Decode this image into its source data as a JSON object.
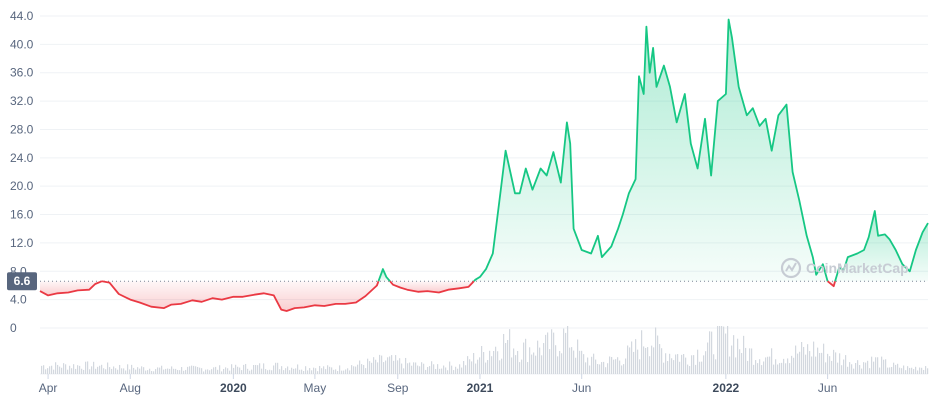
{
  "chart_data": {
    "type": "area",
    "title": "",
    "xlabel": "",
    "ylabel": "",
    "ylim": [
      0,
      44
    ],
    "yticks": [
      "44.0",
      "40.0",
      "36.0",
      "32.0",
      "28.0",
      "24.0",
      "20.0",
      "16.0",
      "12.0",
      "8.0",
      "4.0",
      "0"
    ],
    "ytick_values": [
      44,
      40,
      36,
      32,
      28,
      24,
      20,
      16,
      12,
      8,
      4,
      0
    ],
    "xlim": [
      "2019-03-20",
      "2022-10-28"
    ],
    "xticks": [
      {
        "label": "Apr",
        "date": "2019-04-01",
        "bold": false
      },
      {
        "label": "Aug",
        "date": "2019-08-01",
        "bold": false
      },
      {
        "label": "2020",
        "date": "2020-01-01",
        "bold": true
      },
      {
        "label": "May",
        "date": "2020-05-01",
        "bold": false
      },
      {
        "label": "Sep",
        "date": "2020-09-01",
        "bold": false
      },
      {
        "label": "2021",
        "date": "2021-01-01",
        "bold": true
      },
      {
        "label": "Jun",
        "date": "2021-06-01",
        "bold": false
      },
      {
        "label": "2022",
        "date": "2022-01-01",
        "bold": true
      },
      {
        "label": "Jun",
        "date": "2022-06-01",
        "bold": false
      }
    ],
    "baseline": {
      "value": 6.6,
      "label": "6.6"
    },
    "colors": {
      "above": "#16c784",
      "below": "#ea3943",
      "badge": "#58667e",
      "volume": "#d3d8df"
    },
    "grid": "horizontal",
    "watermark": "CoinMarketCap",
    "series": [
      {
        "name": "",
        "x": [
          "2019-03-20",
          "2019-04-01",
          "2019-04-15",
          "2019-05-01",
          "2019-05-15",
          "2019-06-01",
          "2019-06-10",
          "2019-06-20",
          "2019-07-01",
          "2019-07-15",
          "2019-08-01",
          "2019-08-15",
          "2019-09-01",
          "2019-09-20",
          "2019-10-01",
          "2019-10-15",
          "2019-11-01",
          "2019-11-15",
          "2019-12-01",
          "2019-12-15",
          "2020-01-01",
          "2020-01-15",
          "2020-02-01",
          "2020-02-15",
          "2020-03-01",
          "2020-03-12",
          "2020-03-20",
          "2020-04-01",
          "2020-04-15",
          "2020-05-01",
          "2020-05-15",
          "2020-06-01",
          "2020-06-15",
          "2020-07-01",
          "2020-07-15",
          "2020-08-01",
          "2020-08-10",
          "2020-08-15",
          "2020-08-25",
          "2020-09-05",
          "2020-09-15",
          "2020-10-01",
          "2020-10-15",
          "2020-11-01",
          "2020-11-15",
          "2020-12-01",
          "2020-12-15",
          "2020-12-25",
          "2021-01-01",
          "2021-01-10",
          "2021-01-20",
          "2021-02-01",
          "2021-02-08",
          "2021-02-15",
          "2021-02-22",
          "2021-03-01",
          "2021-03-10",
          "2021-03-20",
          "2021-04-01",
          "2021-04-10",
          "2021-04-20",
          "2021-05-01",
          "2021-05-10",
          "2021-05-15",
          "2021-05-20",
          "2021-06-01",
          "2021-06-15",
          "2021-06-25",
          "2021-07-01",
          "2021-07-15",
          "2021-07-25",
          "2021-08-01",
          "2021-08-10",
          "2021-08-20",
          "2021-08-25",
          "2021-09-01",
          "2021-09-05",
          "2021-09-10",
          "2021-09-15",
          "2021-09-20",
          "2021-10-01",
          "2021-10-10",
          "2021-10-20",
          "2021-11-01",
          "2021-11-10",
          "2021-11-20",
          "2021-12-01",
          "2021-12-10",
          "2021-12-20",
          "2022-01-01",
          "2022-01-05",
          "2022-01-10",
          "2022-01-20",
          "2022-02-01",
          "2022-02-10",
          "2022-02-20",
          "2022-03-01",
          "2022-03-10",
          "2022-03-20",
          "2022-04-01",
          "2022-04-10",
          "2022-04-20",
          "2022-05-01",
          "2022-05-10",
          "2022-05-15",
          "2022-05-25",
          "2022-06-01",
          "2022-06-10",
          "2022-06-18",
          "2022-06-25",
          "2022-07-01",
          "2022-07-15",
          "2022-07-25",
          "2022-08-01",
          "2022-08-10",
          "2022-08-15",
          "2022-08-25",
          "2022-09-01",
          "2022-09-10",
          "2022-09-20",
          "2022-10-01",
          "2022-10-10",
          "2022-10-20",
          "2022-10-28"
        ],
        "y": [
          5.2,
          4.6,
          4.9,
          5.0,
          5.3,
          5.4,
          6.2,
          6.6,
          6.4,
          4.8,
          4.0,
          3.6,
          3.0,
          2.8,
          3.3,
          3.4,
          3.9,
          3.7,
          4.2,
          4.0,
          4.4,
          4.4,
          4.7,
          4.9,
          4.6,
          2.6,
          2.4,
          2.8,
          2.9,
          3.2,
          3.1,
          3.4,
          3.4,
          3.6,
          4.5,
          6.0,
          8.3,
          7.2,
          6.1,
          5.7,
          5.4,
          5.1,
          5.2,
          5.0,
          5.4,
          5.6,
          5.8,
          6.8,
          7.2,
          8.3,
          10.5,
          19.5,
          25.0,
          22.0,
          19.0,
          19.0,
          22.5,
          19.5,
          22.5,
          21.5,
          24.8,
          20.5,
          29.0,
          26.0,
          14.0,
          11.0,
          10.5,
          13.0,
          10.0,
          11.5,
          14.0,
          16.0,
          19.0,
          21.0,
          35.5,
          33.0,
          42.5,
          36.0,
          39.5,
          34.0,
          37.0,
          34.0,
          29.0,
          33.0,
          26.0,
          22.5,
          29.5,
          21.5,
          32.0,
          33.0,
          43.5,
          41.0,
          34.0,
          30.0,
          31.0,
          28.5,
          29.5,
          25.0,
          30.0,
          31.5,
          22.0,
          18.0,
          13.0,
          10.0,
          7.5,
          9.0,
          6.6,
          5.9,
          8.5,
          8.2,
          10.0,
          10.5,
          11.0,
          12.8,
          16.5,
          13.0,
          13.2,
          12.5,
          11.0,
          9.0,
          8.0,
          11.0,
          13.5,
          14.8
        ]
      }
    ],
    "volume": {
      "x": [
        "2019-03-20",
        "2019-06-01",
        "2019-09-01",
        "2019-12-01",
        "2020-03-01",
        "2020-06-01",
        "2020-08-15",
        "2020-10-01",
        "2020-12-01",
        "2021-01-10",
        "2021-02-08",
        "2021-03-01",
        "2021-04-10",
        "2021-05-10",
        "2021-06-01",
        "2021-07-01",
        "2021-08-01",
        "2021-08-25",
        "2021-09-05",
        "2021-10-01",
        "2021-11-01",
        "2021-12-01",
        "2021-12-20",
        "2022-01-05",
        "2022-02-01",
        "2022-03-01",
        "2022-04-01",
        "2022-05-10",
        "2022-06-18",
        "2022-07-15",
        "2022-08-10",
        "2022-09-01",
        "2022-10-01",
        "2022-10-28"
      ],
      "y": [
        3,
        3,
        2,
        2,
        3,
        2,
        5,
        3,
        3,
        8,
        12,
        9,
        10,
        14,
        6,
        4,
        6,
        10,
        14,
        8,
        6,
        9,
        13,
        14,
        8,
        6,
        7,
        9,
        6,
        4,
        5,
        3,
        2,
        3
      ]
    }
  }
}
